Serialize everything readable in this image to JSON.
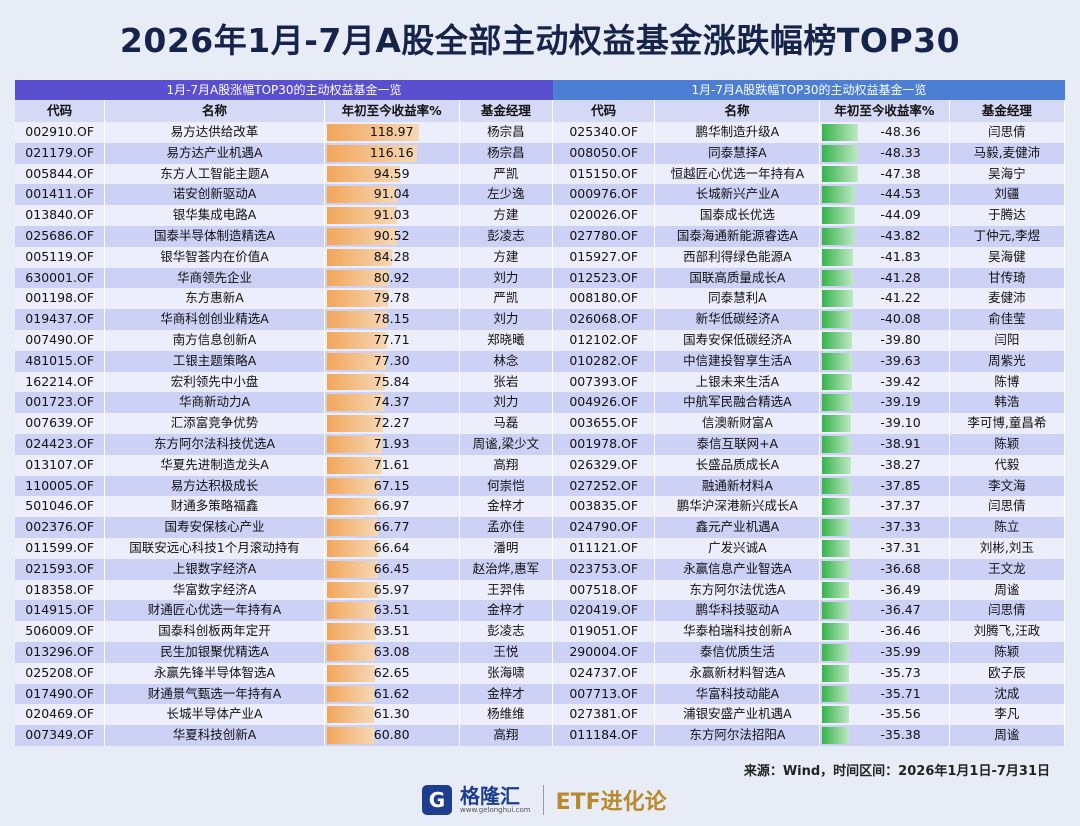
{
  "title": "2026年1月-7月A股全部主动权益基金涨跌幅榜TOP30",
  "left": {
    "caption": "1月-7月A股涨幅TOP30的主动权益基金一览",
    "columns": [
      "代码",
      "名称",
      "年初至今收益率%",
      "基金经理"
    ],
    "rows": [
      [
        "002910.OF",
        "易方达供给改革",
        "118.97",
        "杨宗昌"
      ],
      [
        "021179.OF",
        "易方达产业机遇A",
        "116.16",
        "杨宗昌"
      ],
      [
        "005844.OF",
        "东方人工智能主题A",
        "94.59",
        "严凯"
      ],
      [
        "001411.OF",
        "诺安创新驱动A",
        "91.04",
        "左少逸"
      ],
      [
        "013840.OF",
        "银华集成电路A",
        "91.03",
        "方建"
      ],
      [
        "025686.OF",
        "国泰半导体制造精选A",
        "90.52",
        "彭凌志"
      ],
      [
        "005119.OF",
        "银华智荟内在价值A",
        "84.28",
        "方建"
      ],
      [
        "630001.OF",
        "华商领先企业",
        "80.92",
        "刘力"
      ],
      [
        "001198.OF",
        "东方惠新A",
        "79.78",
        "严凯"
      ],
      [
        "019437.OF",
        "华商科创创业精选A",
        "78.15",
        "刘力"
      ],
      [
        "007490.OF",
        "南方信息创新A",
        "77.71",
        "郑晓曦"
      ],
      [
        "481015.OF",
        "工银主题策略A",
        "77.30",
        "林念"
      ],
      [
        "162214.OF",
        "宏利领先中小盘",
        "75.84",
        "张岩"
      ],
      [
        "001723.OF",
        "华商新动力A",
        "74.37",
        "刘力"
      ],
      [
        "007639.OF",
        "汇添富竞争优势",
        "72.27",
        "马磊"
      ],
      [
        "024423.OF",
        "东方阿尔法科技优选A",
        "71.93",
        "周谧,梁少文"
      ],
      [
        "013107.OF",
        "华夏先进制造龙头A",
        "71.61",
        "高翔"
      ],
      [
        "110005.OF",
        "易方达积极成长",
        "67.15",
        "何崇恺"
      ],
      [
        "501046.OF",
        "财通多策略福鑫",
        "66.97",
        "金梓才"
      ],
      [
        "002376.OF",
        "国寿安保核心产业",
        "66.77",
        "孟亦佳"
      ],
      [
        "011599.OF",
        "国联安远心科技1个月滚动持有",
        "66.64",
        "潘明"
      ],
      [
        "021593.OF",
        "上银数字经济A",
        "66.45",
        "赵治烨,惠军"
      ],
      [
        "018358.OF",
        "华富数字经济A",
        "65.97",
        "王羿伟"
      ],
      [
        "014915.OF",
        "财通匠心优选一年持有A",
        "63.51",
        "金梓才"
      ],
      [
        "506009.OF",
        "国泰科创板两年定开",
        "63.51",
        "彭凌志"
      ],
      [
        "013296.OF",
        "民生加银聚优精选A",
        "63.08",
        "王悦"
      ],
      [
        "025208.OF",
        "永赢先锋半导体智选A",
        "62.65",
        "张海啸"
      ],
      [
        "017490.OF",
        "财通景气甄选一年持有A",
        "61.62",
        "金梓才"
      ],
      [
        "020469.OF",
        "长城半导体产业A",
        "61.30",
        "杨维维"
      ],
      [
        "007349.OF",
        "华夏科技创新A",
        "60.80",
        "高翔"
      ]
    ]
  },
  "right": {
    "caption": "1月-7月A股跌幅TOP30的主动权益基金一览",
    "columns": [
      "代码",
      "名称",
      "年初至今收益率%",
      "基金经理"
    ],
    "rows": [
      [
        "025340.OF",
        "鹏华制造升级A",
        "-48.36",
        "闫思倩"
      ],
      [
        "008050.OF",
        "同泰慧择A",
        "-48.33",
        "马毅,麦健沛"
      ],
      [
        "015150.OF",
        "恒越匠心优选一年持有A",
        "-47.38",
        "吴海宁"
      ],
      [
        "000976.OF",
        "长城新兴产业A",
        "-44.53",
        "刘疆"
      ],
      [
        "020026.OF",
        "国泰成长优选",
        "-44.09",
        "于腾达"
      ],
      [
        "027780.OF",
        "国泰海通新能源睿选A",
        "-43.82",
        "丁仲元,李煜"
      ],
      [
        "015927.OF",
        "西部利得绿色能源A",
        "-41.83",
        "吴海健"
      ],
      [
        "012523.OF",
        "国联高质量成长A",
        "-41.28",
        "甘传琦"
      ],
      [
        "008180.OF",
        "同泰慧利A",
        "-41.22",
        "麦健沛"
      ],
      [
        "026068.OF",
        "新华低碳经济A",
        "-40.08",
        "俞佳莹"
      ],
      [
        "012102.OF",
        "国寿安保低碳经济A",
        "-39.80",
        "闫阳"
      ],
      [
        "010282.OF",
        "中信建投智享生活A",
        "-39.63",
        "周紫光"
      ],
      [
        "007393.OF",
        "上银未来生活A",
        "-39.42",
        "陈博"
      ],
      [
        "004926.OF",
        "中航军民融合精选A",
        "-39.19",
        "韩浩"
      ],
      [
        "003655.OF",
        "信澳新财富A",
        "-39.10",
        "李可博,童昌希"
      ],
      [
        "001978.OF",
        "泰信互联网+A",
        "-38.91",
        "陈颖"
      ],
      [
        "026329.OF",
        "长盛品质成长A",
        "-38.27",
        "代毅"
      ],
      [
        "027252.OF",
        "融通新材料A",
        "-37.85",
        "李文海"
      ],
      [
        "003835.OF",
        "鹏华沪深港新兴成长A",
        "-37.37",
        "闫思倩"
      ],
      [
        "024790.OF",
        "鑫元产业机遇A",
        "-37.33",
        "陈立"
      ],
      [
        "011121.OF",
        "广发兴诚A",
        "-37.31",
        "刘彬,刘玉"
      ],
      [
        "023753.OF",
        "永赢信息产业智选A",
        "-36.68",
        "王文龙"
      ],
      [
        "007518.OF",
        "东方阿尔法优选A",
        "-36.49",
        "周谧"
      ],
      [
        "020419.OF",
        "鹏华科技驱动A",
        "-36.47",
        "闫思倩"
      ],
      [
        "019051.OF",
        "华泰柏瑞科技创新A",
        "-36.46",
        "刘腾飞,汪政"
      ],
      [
        "290004.OF",
        "泰信优质生活",
        "-35.99",
        "陈颖"
      ],
      [
        "024737.OF",
        "永赢新材料智选A",
        "-35.73",
        "欧子辰"
      ],
      [
        "007713.OF",
        "华富科技动能A",
        "-35.71",
        "沈成"
      ],
      [
        "027381.OF",
        "浦银安盛产业机遇A",
        "-35.56",
        "李凡"
      ],
      [
        "011184.OF",
        "东方阿尔法招阳A",
        "-35.38",
        "周谧"
      ]
    ]
  },
  "footer": {
    "source": "来源：Wind，时间区间：2026年1月1日-7月31日",
    "logo_name": "格隆汇",
    "logo_url": "www.gelonghui.com",
    "brand": "ETF进化论"
  }
}
